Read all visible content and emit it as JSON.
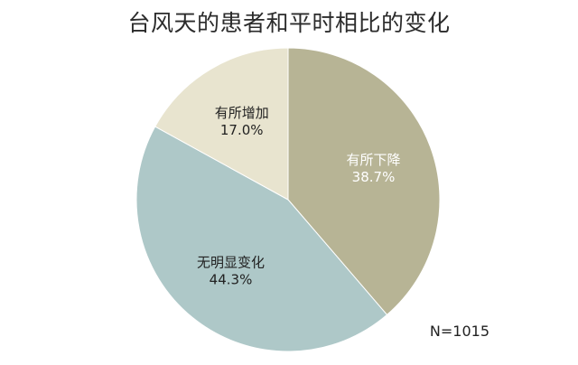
{
  "chart_data": {
    "type": "pie",
    "title": "台风天的患者和平时相比的变化",
    "slices": [
      {
        "label": "有所下降",
        "value": 38.7,
        "value_text": "38.7%",
        "color": "#b7b495",
        "label_color": "#ffffff"
      },
      {
        "label": "无明显变化",
        "value": 44.3,
        "value_text": "44.3%",
        "color": "#aec8c8",
        "label_color": "#222222"
      },
      {
        "label": "有所增加",
        "value": 17.0,
        "value_text": "17.0%",
        "color": "#e8e4cf",
        "label_color": "#222222"
      }
    ],
    "start": "12 o'clock",
    "direction": "clockwise",
    "legend": "none",
    "annotation": "N=1015"
  }
}
